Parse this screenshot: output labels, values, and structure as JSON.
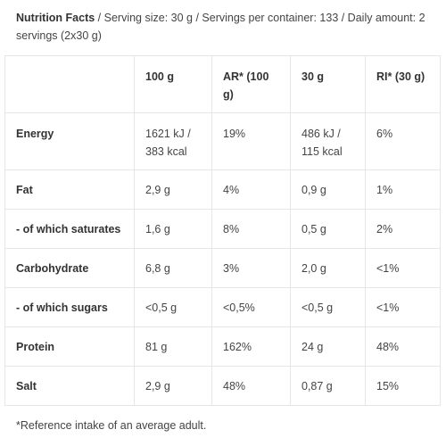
{
  "header": {
    "title": "Nutrition Facts",
    "rest": " / Serving size: 30 g / Servings per container: 133 / Daily amount: 2 servings (2x30 g)"
  },
  "table": {
    "columns": [
      "",
      "100 g",
      "AR* (100 g)",
      "30 g",
      "RI* (30 g)"
    ],
    "rows": [
      {
        "label": "Energy",
        "cells": [
          "1621 kJ / 383 kcal",
          "19%",
          "486 kJ / 115 kcal",
          "6%"
        ]
      },
      {
        "label": "Fat",
        "cells": [
          "2,9 g",
          "4%",
          "0,9 g",
          "1%"
        ]
      },
      {
        "label": "- of which saturates",
        "cells": [
          "1,6 g",
          "8%",
          "0,5 g",
          "2%"
        ]
      },
      {
        "label": "Carbohydrate",
        "cells": [
          "6,8 g",
          "3%",
          "2,0 g",
          "<1%"
        ]
      },
      {
        "label": "- of which sugars",
        "cells": [
          "<0,5 g",
          "<0,5%",
          "<0,5 g",
          "<1%"
        ]
      },
      {
        "label": "Protein",
        "cells": [
          "81 g",
          "162%",
          "24 g",
          "48%"
        ]
      },
      {
        "label": "Salt",
        "cells": [
          "2,9 g",
          "48%",
          "0,87 g",
          "15%"
        ]
      }
    ]
  },
  "footnote": "*Reference intake of an average adult."
}
